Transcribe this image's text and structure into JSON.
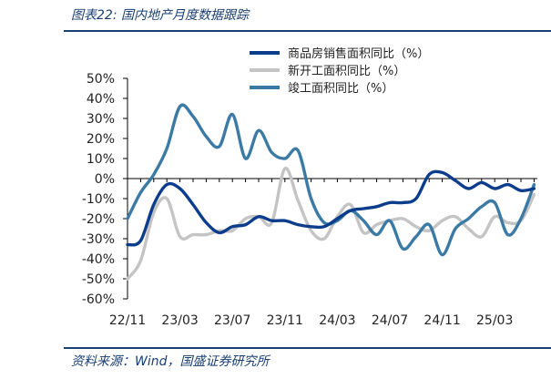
{
  "figure_title": "图表22:  国内地产月度数据跟踪",
  "source_note": "资料来源：Wind，国盛证券研究所",
  "colors": {
    "accent": "#1a3f73",
    "sales": "#0b3d8c",
    "starts": "#c4c4c4",
    "completions": "#3c7aa6"
  },
  "chart_data": {
    "type": "line",
    "title": "",
    "xlabel": "",
    "ylabel": "",
    "ylim": [
      -60,
      50
    ],
    "y_ticks": [
      "50%",
      "40%",
      "30%",
      "20%",
      "10%",
      "0%",
      "-10%",
      "-20%",
      "-30%",
      "-40%",
      "-50%",
      "-60%"
    ],
    "x_ticks": [
      "22/11",
      "23/03",
      "23/07",
      "23/11",
      "24/03",
      "24/07",
      "24/11",
      "25/03"
    ],
    "x": [
      "22/11",
      "22/12",
      "23/01",
      "23/02",
      "23/03",
      "23/04",
      "23/05",
      "23/06",
      "23/07",
      "23/08",
      "23/09",
      "23/10",
      "23/11",
      "23/12",
      "24/01",
      "24/02",
      "24/03",
      "24/04",
      "24/05",
      "24/06",
      "24/07",
      "24/08",
      "24/09",
      "24/10",
      "24/11",
      "24/12",
      "25/01",
      "25/02",
      "25/03",
      "25/04",
      "25/05",
      "25/06"
    ],
    "grid": false,
    "legend_position": "top-right",
    "series": [
      {
        "name": "商品房销售面积同比（%）",
        "color_key": "sales",
        "values": [
          -33,
          -31,
          -13,
          -3,
          -5,
          -13,
          -22,
          -27,
          -24,
          -23,
          -19,
          -21,
          -21,
          -23,
          -24,
          -24,
          -20,
          -16,
          -15,
          -14,
          -12,
          -12,
          -10,
          2,
          3,
          -1,
          -5,
          -2,
          -5,
          -3,
          -6,
          -5
        ]
      },
      {
        "name": "新开工面积同比（%）",
        "color_key": "starts",
        "values": [
          -50,
          -41,
          -17,
          -10,
          -29,
          -28,
          -28,
          -26,
          -26,
          -20,
          -19,
          -22,
          5,
          -11,
          -26,
          -30,
          -19,
          -13,
          -27,
          -23,
          -21,
          -20,
          -24,
          -26,
          -21,
          -19,
          -25,
          -29,
          -19,
          -22,
          -21,
          -8
        ]
      },
      {
        "name": "竣工面积同比（%）",
        "color_key": "completions",
        "values": [
          -20,
          -7,
          2,
          15,
          36,
          31,
          21,
          16,
          32,
          10,
          24,
          13,
          10,
          14,
          -10,
          -22,
          -21,
          -16,
          -21,
          -28,
          -21,
          -35,
          -29,
          -23,
          -38,
          -25,
          -20,
          -14,
          -12,
          -28,
          -20,
          -3
        ]
      }
    ]
  }
}
